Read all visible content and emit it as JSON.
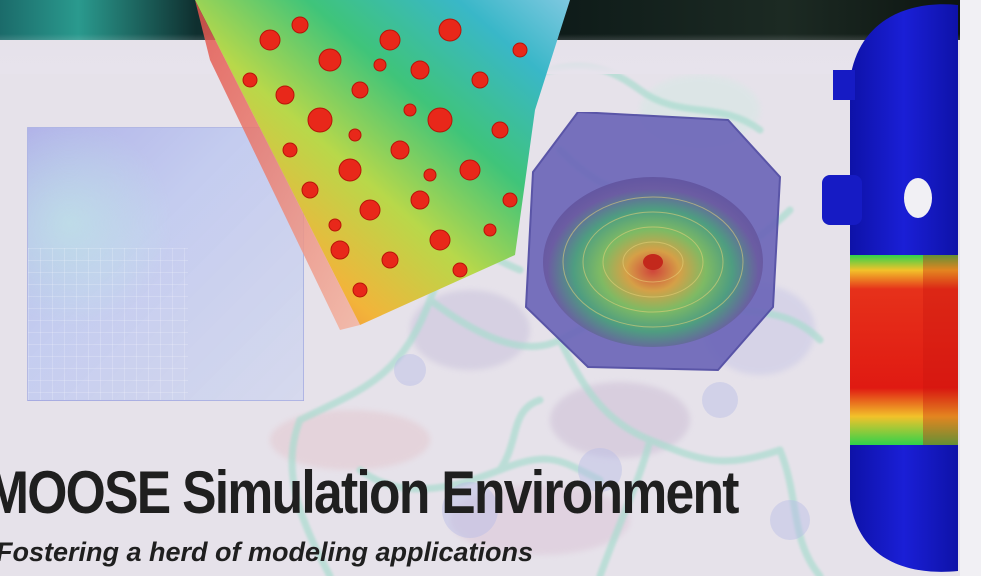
{
  "poster": {
    "title": "MOOSE Simulation Environment",
    "subtitle": "Fostering a herd of modeling applications"
  },
  "colors": {
    "background": "#e7e3ec",
    "title_text": "#1f1f1f",
    "vessel_blue": "#1a1fd6",
    "hot_red": "#e01a12"
  },
  "visuals": [
    "background-grain-network-image",
    "porous-block-simulation-image",
    "octagonal-core-simulation-image",
    "pressure-vessel-simulation-image",
    "pale-mesh-square-image"
  ]
}
